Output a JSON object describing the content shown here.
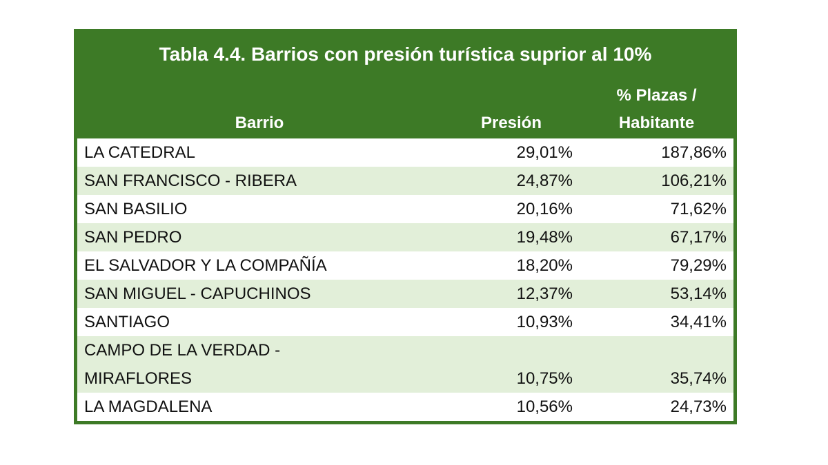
{
  "table": {
    "title": "Tabla 4.4.  Barrios con presión turística suprior al 10%",
    "columns": [
      "Barrio",
      "Presión",
      "% Plazas /\nHabitante"
    ],
    "rows": [
      [
        "LA CATEDRAL",
        "29,01%",
        "187,86%"
      ],
      [
        "SAN FRANCISCO - RIBERA",
        "24,87%",
        "106,21%"
      ],
      [
        "SAN BASILIO",
        "20,16%",
        "71,62%"
      ],
      [
        "SAN PEDRO",
        "19,48%",
        "67,17%"
      ],
      [
        "EL SALVADOR Y LA COMPAÑÍA",
        "18,20%",
        "79,29%"
      ],
      [
        "SAN MIGUEL - CAPUCHINOS",
        "12,37%",
        "53,14%"
      ],
      [
        "SANTIAGO",
        "10,93%",
        "34,41%"
      ],
      [
        "CAMPO DE LA VERDAD -\nMIRAFLORES",
        "10,75%",
        "35,74%"
      ],
      [
        "LA MAGDALENA",
        "10,56%",
        "24,73%"
      ]
    ]
  }
}
